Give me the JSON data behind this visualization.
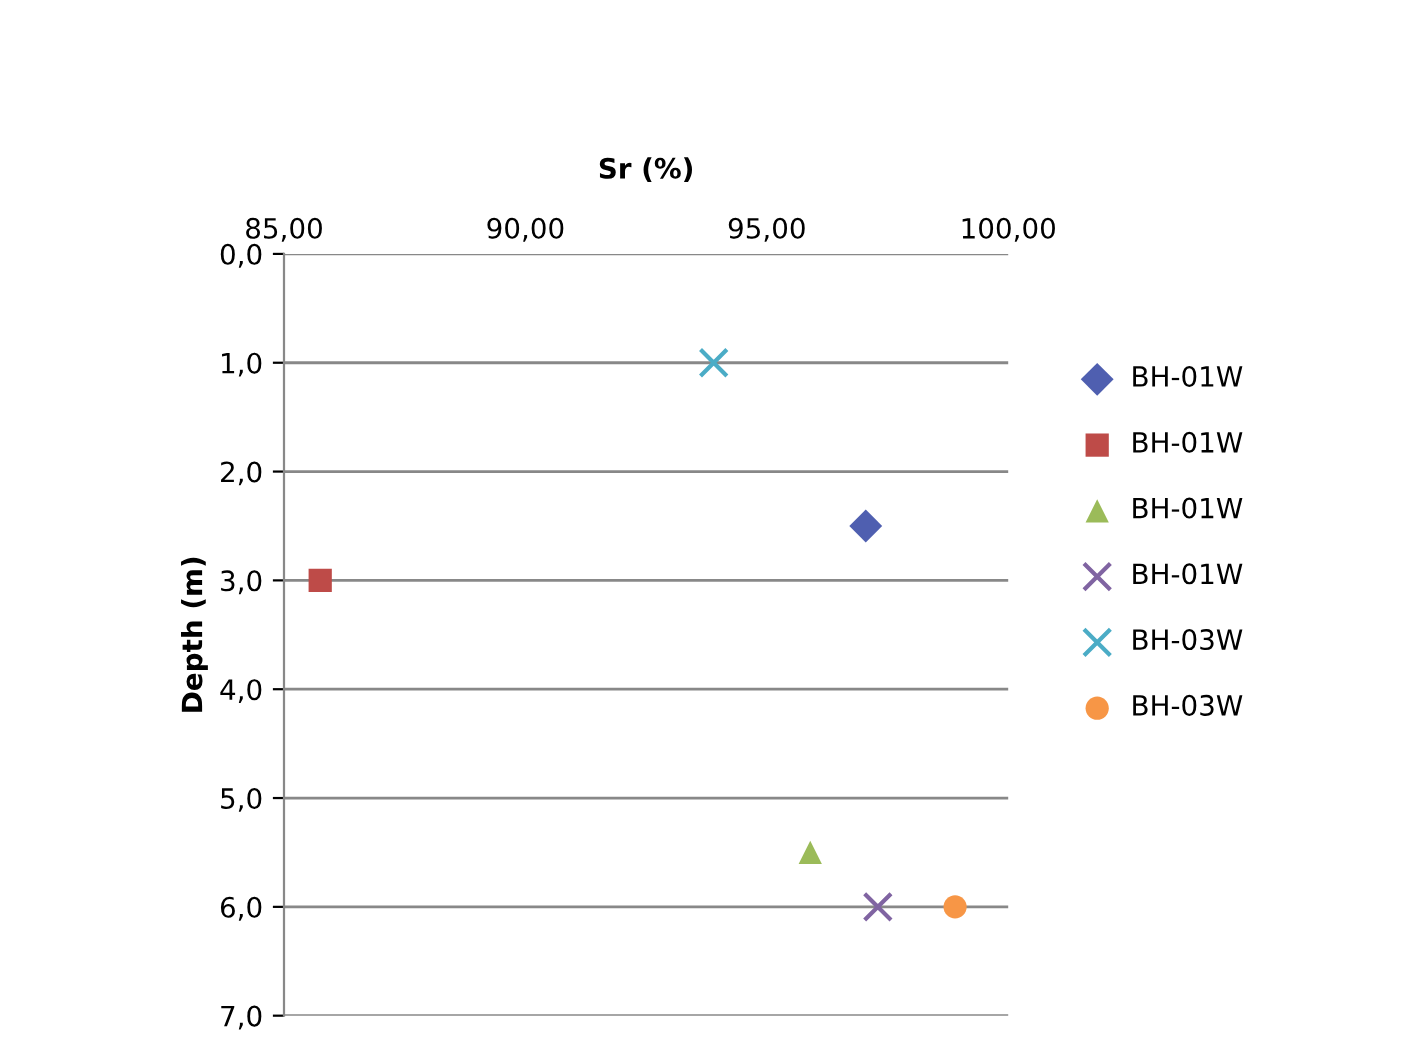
{
  "chart_data": {
    "type": "scatter",
    "xlabel": "Sr (%)",
    "ylabel": "Depth (m)",
    "xlim": [
      85,
      100
    ],
    "xticks": [
      {
        "value": 85,
        "label": "85,00"
      },
      {
        "value": 90,
        "label": "90,00"
      },
      {
        "value": 95,
        "label": "95,00"
      },
      {
        "value": 100,
        "label": "100,00"
      }
    ],
    "ylim": [
      7,
      0
    ],
    "yticks": [
      {
        "value": 0,
        "label": "0,0"
      },
      {
        "value": 1,
        "label": "1,0"
      },
      {
        "value": 2,
        "label": "2,0"
      },
      {
        "value": 3,
        "label": "3,0"
      },
      {
        "value": 4,
        "label": "4,0"
      },
      {
        "value": 5,
        "label": "5,0"
      },
      {
        "value": 6,
        "label": "6,0"
      },
      {
        "value": 7,
        "label": "7,0"
      }
    ],
    "grid": "y",
    "legend": "right",
    "series": [
      {
        "name": "BH-01W",
        "color": "#4f5fb0",
        "marker": "diamond",
        "x": [
          97.05
        ],
        "values": [
          2.5
        ]
      },
      {
        "name": "BH-01W",
        "color": "#be4b48",
        "marker": "square",
        "x": [
          85.75
        ],
        "values": [
          3.0
        ]
      },
      {
        "name": "BH-01W",
        "color": "#9bbb59",
        "marker": "triangle",
        "x": [
          95.9
        ],
        "values": [
          5.5
        ]
      },
      {
        "name": "BH-01W",
        "color": "#8064a2",
        "marker": "cross",
        "x": [
          97.3
        ],
        "values": [
          6.0
        ]
      },
      {
        "name": "BH-03W",
        "color": "#4bacc6",
        "marker": "cross",
        "x": [
          93.9
        ],
        "values": [
          1.0
        ]
      },
      {
        "name": "BH-03W",
        "color": "#f79646",
        "marker": "circle",
        "x": [
          98.9
        ],
        "values": [
          6.0
        ]
      }
    ]
  }
}
